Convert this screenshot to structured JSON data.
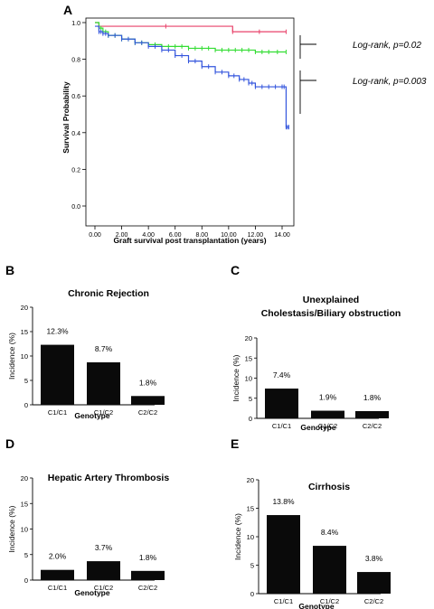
{
  "colors": {
    "c1c1": "#e8426a",
    "c1c2": "#33dd33",
    "c2c2": "#3355dd",
    "bar": "#0a0a0a",
    "axis": "#000000"
  },
  "chart_data": [
    {
      "panel": "A",
      "type": "line",
      "title": "",
      "xlabel": "Graft survival post transplantation (years)",
      "ylabel": "Survival Probability",
      "xlim": [
        -0.5,
        15
      ],
      "ylim": [
        0,
        1.0
      ],
      "xticks": [
        "0.00",
        "2.00",
        "4.00",
        "6.00",
        "8.00",
        "10.00",
        "12.00",
        "14.00"
      ],
      "yticks": [
        "0.0",
        "0.2",
        "0.4",
        "0.6",
        "0.8",
        "1.0"
      ],
      "series": [
        {
          "color": "#e8426a",
          "x": [
            0,
            0.3,
            10.3,
            14.3
          ],
          "y": [
            1.0,
            0.98,
            0.95,
            0.95
          ]
        },
        {
          "color": "#33dd33",
          "x": [
            0,
            0.3,
            0.6,
            1,
            2,
            3,
            4,
            5,
            6,
            7,
            8,
            9,
            10,
            11,
            12,
            13,
            14.3
          ],
          "y": [
            1.0,
            0.97,
            0.95,
            0.93,
            0.91,
            0.89,
            0.88,
            0.87,
            0.87,
            0.86,
            0.86,
            0.85,
            0.85,
            0.85,
            0.84,
            0.84,
            0.84
          ]
        },
        {
          "color": "#3355dd",
          "x": [
            0,
            0.3,
            0.6,
            1,
            2,
            3,
            4,
            5,
            6,
            7,
            8,
            9,
            10,
            10.8,
            11.5,
            12,
            13,
            14,
            14.3,
            14.5
          ],
          "y": [
            0.98,
            0.95,
            0.94,
            0.93,
            0.91,
            0.89,
            0.87,
            0.85,
            0.82,
            0.79,
            0.76,
            0.73,
            0.71,
            0.69,
            0.67,
            0.65,
            0.65,
            0.65,
            0.43,
            0.43
          ]
        }
      ],
      "annotations": [
        "Log-rank, p=0.02",
        "Log-rank, p=0.003"
      ]
    },
    {
      "panel": "B",
      "type": "bar",
      "title": "Chronic Rejection",
      "xlabel": "Genotype",
      "ylabel": "Incidence (%)",
      "categories": [
        "C1/C1",
        "C1/C2",
        "C2/C2"
      ],
      "values": [
        12.3,
        8.7,
        1.8
      ],
      "labels": [
        "12.3%",
        "8.7%",
        "1.8%"
      ],
      "ylim": [
        0,
        20
      ],
      "yticks": [
        "0",
        "5",
        "10",
        "15",
        "20"
      ]
    },
    {
      "panel": "C",
      "type": "bar",
      "title": "Unexplained",
      "title2": "Cholestasis/Biliary obstruction",
      "xlabel": "Genotype",
      "ylabel": "Incidence (%)",
      "categories": [
        "C1/C1",
        "C1/C2",
        "C2/C2"
      ],
      "values": [
        7.4,
        1.9,
        1.8
      ],
      "labels": [
        "7.4%",
        "1.9%",
        "1.8%"
      ],
      "ylim": [
        0,
        20
      ],
      "yticks": [
        "0",
        "5",
        "10",
        "15",
        "20"
      ]
    },
    {
      "panel": "D",
      "type": "bar",
      "title": "Hepatic Artery Thrombosis",
      "xlabel": "Genotype",
      "ylabel": "Incidence (%)",
      "categories": [
        "C1/C1",
        "C1/C2",
        "C2/C2"
      ],
      "values": [
        2.0,
        3.7,
        1.8
      ],
      "labels": [
        "2.0%",
        "3.7%",
        "1.8%"
      ],
      "ylim": [
        0,
        20
      ],
      "yticks": [
        "0",
        "5",
        "10",
        "15",
        "20"
      ]
    },
    {
      "panel": "E",
      "type": "bar",
      "title": "Cirrhosis",
      "xlabel": "Genotype",
      "ylabel": "Incidence (%)",
      "categories": [
        "C1/C1",
        "C1/C2",
        "C2/C2"
      ],
      "values": [
        13.8,
        8.4,
        3.8
      ],
      "labels": [
        "13.8%",
        "8.4%",
        "3.8%"
      ],
      "ylim": [
        0,
        20
      ],
      "yticks": [
        "0",
        "5",
        "10",
        "15",
        "20"
      ]
    }
  ]
}
